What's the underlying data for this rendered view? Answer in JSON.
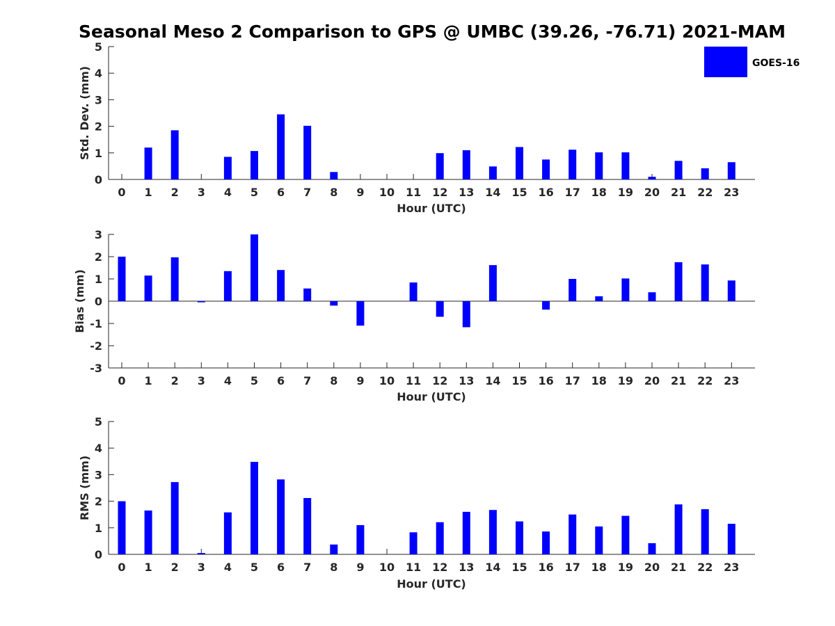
{
  "title": "Seasonal Meso 2 Comparison to GPS @ UMBC (39.26, -76.71) 2021-MAM",
  "legend": {
    "label": "GOES-16",
    "color": "#0000ff"
  },
  "chart_data": [
    {
      "type": "bar",
      "categories": [
        "0",
        "1",
        "2",
        "3",
        "4",
        "5",
        "6",
        "7",
        "8",
        "9",
        "10",
        "11",
        "12",
        "13",
        "14",
        "15",
        "16",
        "17",
        "18",
        "19",
        "20",
        "21",
        "22",
        "23"
      ],
      "series": [
        {
          "name": "GOES-16",
          "values": [
            0,
            1.2,
            1.85,
            0,
            0.85,
            1.07,
            2.45,
            2.02,
            0.28,
            0,
            0,
            0,
            0.99,
            1.1,
            0.49,
            1.22,
            0.75,
            1.12,
            1.02,
            1.02,
            0.1,
            0.7,
            0.42,
            0.65
          ]
        }
      ],
      "xlabel": "Hour (UTC)",
      "ylabel": "Std. Dev. (mm)",
      "ylim": [
        0,
        5
      ],
      "yticks": [
        "0",
        "1",
        "2",
        "3",
        "4",
        "5"
      ]
    },
    {
      "type": "bar",
      "categories": [
        "0",
        "1",
        "2",
        "3",
        "4",
        "5",
        "6",
        "7",
        "8",
        "9",
        "10",
        "11",
        "12",
        "13",
        "14",
        "15",
        "16",
        "17",
        "18",
        "19",
        "20",
        "21",
        "22",
        "23"
      ],
      "series": [
        {
          "name": "GOES-16",
          "values": [
            2.0,
            1.15,
            1.97,
            -0.05,
            1.35,
            3.0,
            1.4,
            0.57,
            -0.2,
            -1.1,
            0,
            0.84,
            -0.7,
            -1.17,
            1.62,
            0,
            -0.38,
            1.0,
            0.22,
            1.02,
            0.4,
            1.75,
            1.65,
            0.93
          ]
        }
      ],
      "xlabel": "Hour (UTC)",
      "ylabel": "Bias (mm)",
      "ylim": [
        -3,
        3
      ],
      "yticks": [
        "-3",
        "-2",
        "-1",
        "0",
        "1",
        "2",
        "3"
      ]
    },
    {
      "type": "bar",
      "categories": [
        "0",
        "1",
        "2",
        "3",
        "4",
        "5",
        "6",
        "7",
        "8",
        "9",
        "10",
        "11",
        "12",
        "13",
        "14",
        "15",
        "16",
        "17",
        "18",
        "19",
        "20",
        "21",
        "22",
        "23"
      ],
      "series": [
        {
          "name": "GOES-16",
          "values": [
            2.0,
            1.65,
            2.72,
            0.05,
            1.58,
            3.48,
            2.82,
            2.12,
            0.37,
            1.1,
            0,
            0.83,
            1.21,
            1.6,
            1.67,
            1.24,
            0.86,
            1.5,
            1.05,
            1.45,
            0.42,
            1.88,
            1.7,
            1.15
          ]
        }
      ],
      "xlabel": "Hour (UTC)",
      "ylabel": "RMS (mm)",
      "ylim": [
        0,
        5
      ],
      "yticks": [
        "0",
        "1",
        "2",
        "3",
        "4",
        "5"
      ]
    }
  ]
}
